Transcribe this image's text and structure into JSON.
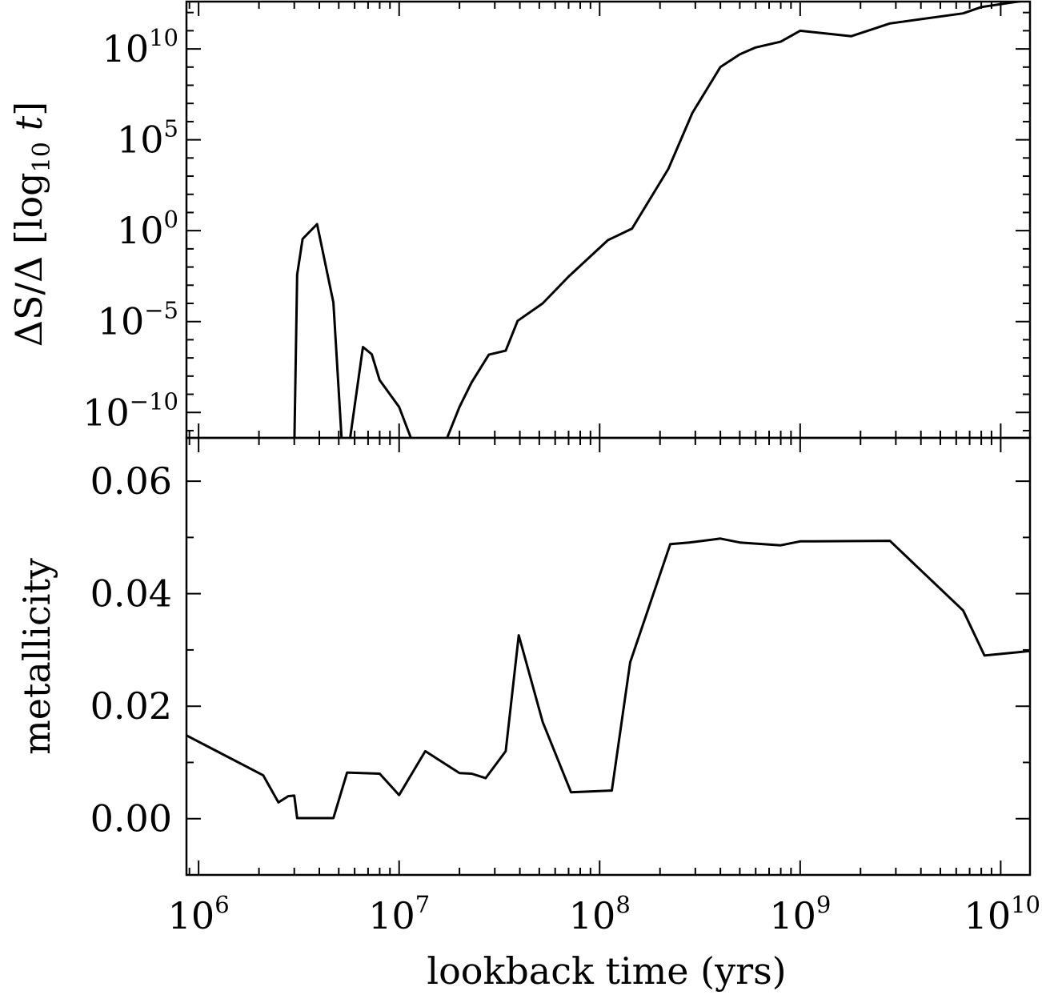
{
  "chart_data": [
    {
      "type": "line",
      "panel": "top",
      "ylabel": "ΔS/Δ [log₁₀ t]",
      "ylabel_parts": {
        "prefix": "ΔS/Δ [log",
        "sub": "10",
        "var": "t",
        "suffix": "]"
      },
      "xscale": "log",
      "yscale": "log",
      "xlim": [
        870000,
        14000000000
      ],
      "ylim": [
        4e-12,
        4000000000000.0
      ],
      "y_ticks": [
        {
          "value": 1e-10,
          "mantissa": "10",
          "exponent": "−10"
        },
        {
          "value": 1e-05,
          "mantissa": "10",
          "exponent": "−5"
        },
        {
          "value": 1,
          "mantissa": "10",
          "exponent": "0"
        },
        {
          "value": 100000.0,
          "mantissa": "10",
          "exponent": "5"
        },
        {
          "value": 10000000000.0,
          "mantissa": "10",
          "exponent": "10"
        }
      ],
      "grid": false,
      "series": [
        {
          "color": "#000000",
          "segments": [
            {
              "x": [
                3000000,
                3100000,
                3300000,
                3900000,
                4700000,
                5200000
              ],
              "y": [
                1e-12,
                0.0038,
                0.35,
                2.3,
                0.00011,
                1e-12
              ]
            },
            {
              "x": [
                5600000,
                6600000,
                7300000,
                8000000,
                10000000,
                12000000
              ],
              "y": [
                1e-12,
                4e-07,
                1.6e-07,
                6e-09,
                2e-10,
                1e-12
              ]
            },
            {
              "x": [
                16500000,
                20000000,
                23000000,
                28000000,
                34000000,
                39000000,
                52000000,
                70000000,
                110000000,
                145000000,
                220000000,
                290000000,
                400000000,
                500000000,
                600000000,
                800000000,
                1000000000,
                1800000000,
                2800000000,
                6500000000,
                8000000000,
                14000000000
              ],
              "y": [
                1e-12,
                2e-10,
                4.5e-09,
                1.5e-07,
                2.5e-07,
                1.1e-05,
                0.0001,
                0.003,
                0.3,
                1.3,
                2500,
                3000000.0,
                1000000000.0,
                5000000000.0,
                12000000000.0,
                25000000000.0,
                100000000000.0,
                50000000000.0,
                250000000000.0,
                900000000000.0,
                2000000000000.0,
                5000000000000.0
              ]
            }
          ]
        }
      ]
    },
    {
      "type": "line",
      "panel": "bottom",
      "xlabel": "lookback time (yrs)",
      "ylabel": "metallicity",
      "xscale": "log",
      "yscale": "linear",
      "xlim": [
        870000,
        14000000000
      ],
      "ylim": [
        -0.01,
        0.0677
      ],
      "x_ticks": [
        {
          "value": 1000000,
          "mantissa": "10",
          "exponent": "6"
        },
        {
          "value": 10000000,
          "mantissa": "10",
          "exponent": "7"
        },
        {
          "value": 100000000,
          "mantissa": "10",
          "exponent": "8"
        },
        {
          "value": 1000000000,
          "mantissa": "10",
          "exponent": "9"
        },
        {
          "value": 10000000000,
          "mantissa": "10",
          "exponent": "10"
        }
      ],
      "y_ticks": [
        {
          "value": 0.0,
          "label": "0.00"
        },
        {
          "value": 0.02,
          "label": "0.02"
        },
        {
          "value": 0.04,
          "label": "0.04"
        },
        {
          "value": 0.06,
          "label": "0.06"
        }
      ],
      "grid": false,
      "series": [
        {
          "color": "#000000",
          "x": [
            870000,
            2100000,
            2500000,
            2800000,
            3000000,
            3100000,
            4700000,
            5500000,
            8000000,
            10000000,
            13500000,
            20000000,
            23000000,
            27000000,
            34000000,
            39500000,
            52000000,
            72000000,
            115000000,
            142000000,
            225000000,
            280000000,
            400000000,
            500000000,
            800000000,
            1000000000,
            2800000000,
            6500000000,
            8300000000,
            14000000000
          ],
          "y": [
            0.0148,
            0.0077,
            0.0029,
            0.004,
            0.0041,
            0.0001,
            0.0001,
            0.0082,
            0.008,
            0.0042,
            0.012,
            0.0081,
            0.008,
            0.0072,
            0.012,
            0.0326,
            0.0172,
            0.0047,
            0.005,
            0.0278,
            0.0488,
            0.0491,
            0.0498,
            0.0491,
            0.0486,
            0.0493,
            0.0494,
            0.037,
            0.029,
            0.0298
          ]
        }
      ]
    }
  ]
}
